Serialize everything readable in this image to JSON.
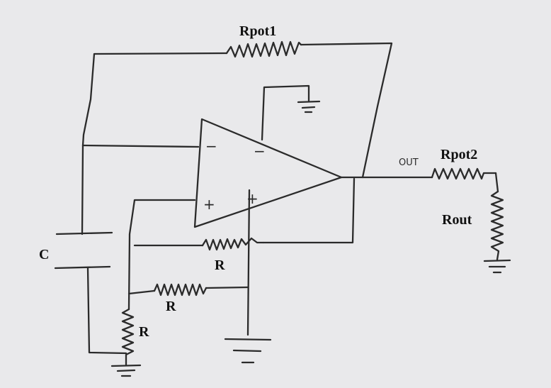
{
  "labels": {
    "rpot1": "Rpot1",
    "rpot2": "Rpot2",
    "rout": "Rout",
    "out": "OUT",
    "c": "C",
    "r_top": "R",
    "r_mid": "R",
    "r_left": "R"
  },
  "opamp": {
    "inverting_symbols": [
      "−",
      "−"
    ],
    "noninverting_symbols": [
      "+",
      "+"
    ]
  },
  "colors": {
    "background": "#e9e9eb",
    "ink": "#2b2b2b"
  }
}
